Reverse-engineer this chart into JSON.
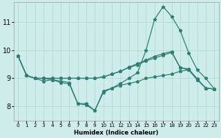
{
  "xlabel": "Humidex (Indice chaleur)",
  "bg_color": "#ceecea",
  "line_color": "#2d7d72",
  "grid_color": "#aad8d4",
  "xlim": [
    -0.5,
    23.5
  ],
  "ylim": [
    7.5,
    11.7
  ],
  "yticks": [
    8,
    9,
    10,
    11
  ],
  "xticks": [
    0,
    1,
    2,
    3,
    4,
    5,
    6,
    7,
    8,
    9,
    10,
    11,
    12,
    13,
    14,
    15,
    16,
    17,
    18,
    19,
    20,
    21,
    22,
    23
  ],
  "lines": [
    [
      9.8,
      9.1,
      9.0,
      8.9,
      8.95,
      8.85,
      8.8,
      8.1,
      8.1,
      7.85,
      8.55,
      8.65,
      8.75,
      8.82,
      8.88,
      9.0,
      9.05,
      9.1,
      9.15,
      9.25,
      9.3,
      8.95,
      8.65,
      8.62
    ],
    [
      9.8,
      9.1,
      9.0,
      9.0,
      9.0,
      9.0,
      9.0,
      9.0,
      9.0,
      9.0,
      9.05,
      9.15,
      9.25,
      9.4,
      9.52,
      9.65,
      9.78,
      9.88,
      9.95,
      9.38,
      9.33,
      8.98,
      8.65,
      8.62
    ],
    [
      9.8,
      9.1,
      9.0,
      9.0,
      8.95,
      8.9,
      8.85,
      8.1,
      8.05,
      7.85,
      8.5,
      8.65,
      8.82,
      9.0,
      9.2,
      10.0,
      11.1,
      11.55,
      11.2,
      10.7,
      9.9,
      9.3,
      9.0,
      8.62
    ],
    [
      9.8,
      9.1,
      9.0,
      9.0,
      9.0,
      9.0,
      9.0,
      9.0,
      9.0,
      9.0,
      9.05,
      9.15,
      9.25,
      9.38,
      9.48,
      9.62,
      9.72,
      9.82,
      9.92,
      9.38,
      9.3,
      8.95,
      8.65,
      8.62
    ]
  ]
}
